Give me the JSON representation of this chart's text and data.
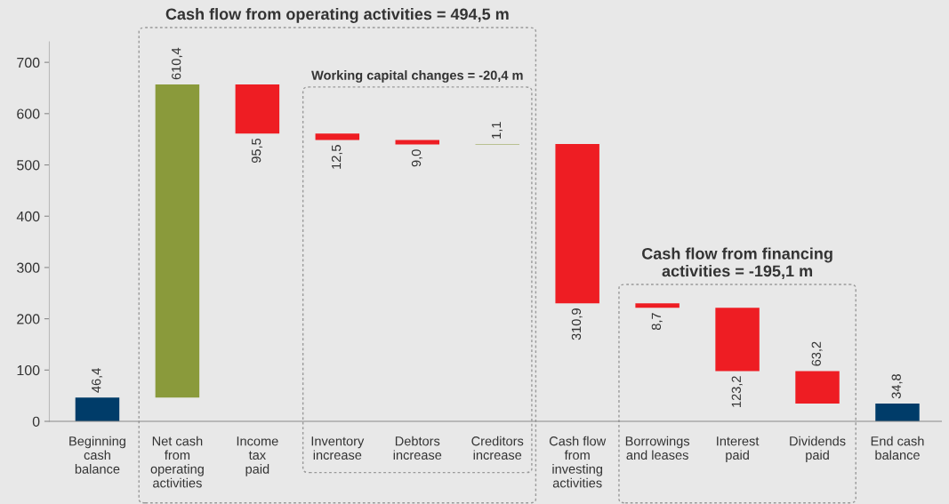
{
  "chart_data": {
    "type": "bar",
    "categories": [
      "Beginning\ncash\nbalance",
      "Net cash\nfrom\noperating\nactivities",
      "Income\ntax\npaid",
      "Inventory\nincrease",
      "Debtors\nincrease",
      "Creditors\nincrease",
      "Cash flow\nfrom\ninvesting\nactivities",
      "Borrowings\nand leases",
      "Interest\npaid",
      "Dividends\npaid",
      "End cash\nbalance"
    ],
    "values": [
      46.4,
      610.4,
      -95.5,
      -12.5,
      -9.0,
      1.1,
      -310.9,
      -8.7,
      -123.2,
      -63.2,
      34.8
    ],
    "base": [
      0,
      46.4,
      656.8,
      561.3,
      548.8,
      539.8,
      540.9,
      230.0,
      221.3,
      98.1,
      0
    ],
    "colors": [
      "#003c69",
      "#8a9a3b",
      "#ee1d23",
      "#ee1d23",
      "#ee1d23",
      "#8a9a3b",
      "#ee1d23",
      "#ee1d23",
      "#ee1d23",
      "#ee1d23",
      "#003c69"
    ],
    "value_labels": [
      "46,4",
      "610,4",
      "95,5",
      "12,5",
      "9,0",
      "1,1",
      "310,9",
      "8,7",
      "123,2",
      "63,2",
      "34,8"
    ],
    "ylim": [
      0,
      740
    ],
    "yticks": [
      0,
      100,
      200,
      300,
      400,
      500,
      600,
      700
    ],
    "grid": false,
    "annotations": [
      "Cash flow from operating activities = 494,5 m",
      "Working capital changes = -20,4 m",
      "Cash flow from financing\nactivities = -195,1 m"
    ]
  }
}
